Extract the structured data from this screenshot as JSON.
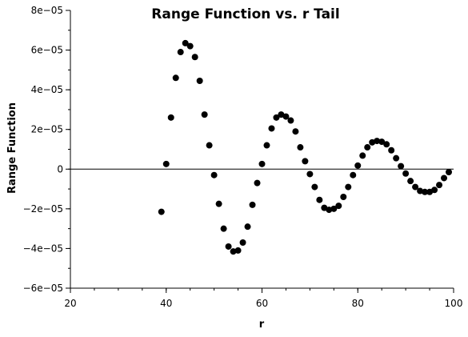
{
  "chart_data": {
    "type": "scatter",
    "title": "Range Function vs. r Tail",
    "xlabel": "r",
    "ylabel": "Range Function",
    "xlim": [
      20,
      100
    ],
    "ylim": [
      -6e-05,
      8e-05
    ],
    "x_ticks": [
      20,
      40,
      60,
      80,
      100
    ],
    "x_tick_labels": [
      "20",
      "40",
      "60",
      "80",
      "100"
    ],
    "y_ticks": [
      -6e-05,
      -4e-05,
      -2e-05,
      0,
      2e-05,
      4e-05,
      6e-05,
      8e-05
    ],
    "y_tick_labels": [
      "−6e−05",
      "−4e−05",
      "−2e−05",
      "0",
      "2e−05",
      "4e−05",
      "6e−05",
      "8e−05"
    ],
    "x_minor_step": 5,
    "y_minor_step": 1e-05,
    "zero_line": true,
    "grid": false,
    "marker_color": "#000000",
    "series": [
      {
        "x": [
          39,
          40,
          41,
          42,
          43,
          44,
          45,
          46,
          47,
          48,
          49,
          50,
          51,
          52,
          53,
          54,
          55,
          56,
          57,
          58,
          59,
          60,
          61,
          62,
          63,
          64,
          65,
          66,
          67,
          68,
          69,
          70,
          71,
          72,
          73,
          74,
          75,
          76,
          77,
          78,
          79,
          80,
          81,
          82,
          83,
          84,
          85,
          86,
          87,
          88,
          89,
          90,
          91,
          92,
          93,
          94,
          95,
          96,
          97,
          98,
          99
        ],
        "y": [
          -2.15e-05,
          2.6e-06,
          2.6e-05,
          4.6e-05,
          5.9e-05,
          6.35e-05,
          6.2e-05,
          5.65e-05,
          4.45e-05,
          2.75e-05,
          1.2e-05,
          -3e-06,
          -1.75e-05,
          -3e-05,
          -3.9e-05,
          -4.15e-05,
          -4.1e-05,
          -3.7e-05,
          -2.9e-05,
          -1.8e-05,
          -7e-06,
          2.6e-06,
          1.2e-05,
          2.05e-05,
          2.6e-05,
          2.75e-05,
          2.65e-05,
          2.45e-05,
          1.9e-05,
          1.1e-05,
          4e-06,
          -2.5e-06,
          -9e-06,
          -1.55e-05,
          -1.95e-05,
          -2.05e-05,
          -2e-05,
          -1.85e-05,
          -1.4e-05,
          -9e-06,
          -3e-06,
          1.8e-06,
          6.8e-06,
          1.1e-05,
          1.35e-05,
          1.42e-05,
          1.38e-05,
          1.25e-05,
          9.5e-06,
          5.5e-06,
          1.5e-06,
          -2.2e-06,
          -6e-06,
          -9e-06,
          -1.1e-05,
          -1.15e-05,
          -1.15e-05,
          -1.05e-05,
          -8e-06,
          -4.5e-06,
          -1.5e-06
        ]
      }
    ]
  }
}
